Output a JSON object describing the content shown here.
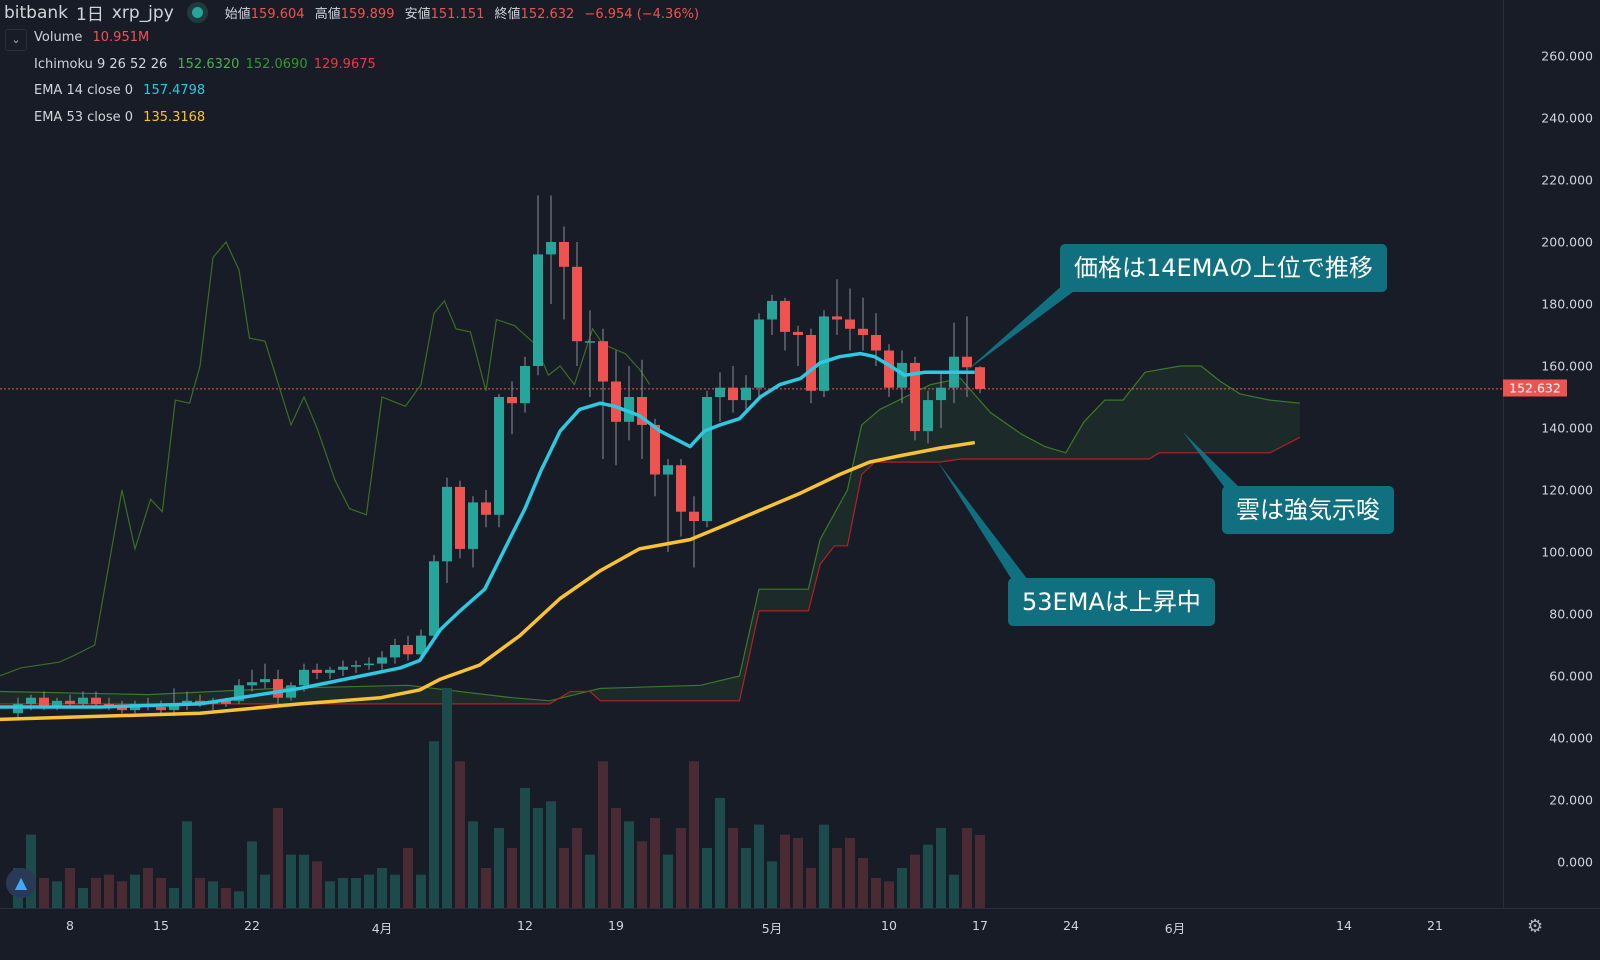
{
  "header": {
    "exchange": "bitbank",
    "interval": "1日",
    "symbol": "xrp_jpy",
    "open_label": "始値",
    "open": "159.604",
    "high_label": "高値",
    "high": "159.899",
    "low_label": "安値",
    "low": "151.151",
    "close_label": "終値",
    "close": "152.632",
    "change": "−6.954 (−4.36%)"
  },
  "legend": {
    "volume_label": "Volume",
    "volume_value": "10.951M",
    "ichimoku_label": "Ichimoku 9 26 52 26",
    "ichimoku_v1": "152.6320",
    "ichimoku_v2": "152.0690",
    "ichimoku_v3": "129.9675",
    "ema14_label": "EMA 14 close 0",
    "ema14_value": "157.4798",
    "ema53_label": "EMA 53 close 0",
    "ema53_value": "135.3168"
  },
  "annotations": {
    "price_note": "価格は14EMAの上位で推移",
    "cloud_note": "雲は強気示唆",
    "ema53_note": "53EMAは上昇中"
  },
  "price_axis": [
    "260.000",
    "240.000",
    "220.000",
    "200.000",
    "180.000",
    "160.000",
    "140.000",
    "120.000",
    "100.000",
    "80.000",
    "60.000",
    "40.000",
    "20.000",
    "0.000"
  ],
  "last_price_tag": "152.632",
  "colors": {
    "background": "#181c27",
    "up": "#26a69a",
    "down": "#ef5350",
    "ema14": "#2ec8e0",
    "ema53": "#f9c235",
    "span_a": "#3a7a25",
    "span_b": "#b22222",
    "lagging": "#3b6e22",
    "callout": "#11707f"
  },
  "icons": {
    "collapse": "chevron-down-icon",
    "settings": "gear-icon",
    "logo": "tradingview-logo-icon",
    "status": "market-open-dot-icon"
  },
  "chart_data": {
    "type": "candlestick",
    "ylim": [
      0,
      270
    ],
    "x_ticks": [
      {
        "label": "8",
        "day": 4
      },
      {
        "label": "15",
        "day": 11
      },
      {
        "label": "22",
        "day": 18
      },
      {
        "label": "4月",
        "day": 28
      },
      {
        "label": "12",
        "day": 39
      },
      {
        "label": "19",
        "day": 46
      },
      {
        "label": "5月",
        "day": 58
      },
      {
        "label": "10",
        "day": 67
      },
      {
        "label": "17",
        "day": 74
      },
      {
        "label": "24",
        "day": 81
      },
      {
        "label": "6月",
        "day": 89
      },
      {
        "label": "14",
        "day": 102
      },
      {
        "label": "21",
        "day": 109
      }
    ],
    "candles_ohlc": [
      [
        48,
        53,
        46,
        51
      ],
      [
        51,
        54,
        49,
        53
      ],
      [
        53,
        55,
        49,
        50
      ],
      [
        50,
        53,
        49,
        52
      ],
      [
        52,
        54,
        50,
        51
      ],
      [
        51,
        55,
        50,
        53
      ],
      [
        53,
        55,
        50,
        51
      ],
      [
        51,
        53,
        49,
        50
      ],
      [
        50,
        52,
        48,
        49
      ],
      [
        49,
        52,
        48,
        51
      ],
      [
        51,
        53,
        49,
        50
      ],
      [
        50,
        52,
        47,
        49
      ],
      [
        49,
        56,
        47,
        51
      ],
      [
        51,
        55,
        49,
        52
      ],
      [
        52,
        54,
        50,
        51
      ],
      [
        51,
        53,
        49,
        52
      ],
      [
        52,
        53,
        50,
        51
      ],
      [
        52,
        59,
        51,
        57
      ],
      [
        57,
        62,
        55,
        58
      ],
      [
        58,
        64,
        56,
        59
      ],
      [
        59,
        62,
        51,
        53
      ],
      [
        53,
        58,
        52,
        57
      ],
      [
        57,
        64,
        55,
        62
      ],
      [
        62,
        64,
        59,
        61
      ],
      [
        61,
        63,
        59,
        62
      ],
      [
        62,
        65,
        60,
        63
      ],
      [
        63,
        65,
        61,
        63.5
      ],
      [
        63.5,
        66,
        62,
        64
      ],
      [
        64,
        68,
        62,
        66
      ],
      [
        66,
        72,
        64,
        70
      ],
      [
        70,
        73,
        65,
        67
      ],
      [
        67,
        75,
        65,
        73
      ],
      [
        73,
        99,
        72,
        97
      ],
      [
        97,
        124,
        90,
        121
      ],
      [
        121,
        123,
        98,
        101
      ],
      [
        101,
        118,
        95,
        116
      ],
      [
        116,
        120,
        108,
        112
      ],
      [
        112,
        151,
        108,
        150
      ],
      [
        150,
        155,
        138,
        148
      ],
      [
        148,
        163,
        145,
        160
      ],
      [
        160,
        215,
        157,
        196
      ],
      [
        196,
        215,
        180,
        200
      ],
      [
        200,
        205,
        175,
        192
      ],
      [
        192,
        200,
        160,
        168
      ],
      [
        168,
        178,
        150,
        168
      ],
      [
        168,
        172,
        130,
        155
      ],
      [
        155,
        165,
        128,
        142
      ],
      [
        142,
        160,
        136,
        150
      ],
      [
        150,
        162,
        130,
        141
      ],
      [
        141,
        143,
        118,
        125
      ],
      [
        125,
        130,
        100,
        128
      ],
      [
        128,
        130,
        105,
        113
      ],
      [
        113,
        118,
        95,
        110
      ],
      [
        110,
        152,
        108,
        150
      ],
      [
        150,
        158,
        142,
        153
      ],
      [
        153,
        160,
        145,
        149
      ],
      [
        149,
        157,
        145,
        153
      ],
      [
        153,
        177,
        150,
        175
      ],
      [
        175,
        183,
        170,
        181
      ],
      [
        181,
        182,
        165,
        171
      ],
      [
        171,
        173,
        160,
        170
      ],
      [
        170,
        172,
        148,
        152
      ],
      [
        152,
        178,
        150,
        176
      ],
      [
        176,
        188,
        170,
        175
      ],
      [
        175,
        185,
        165,
        172
      ],
      [
        172,
        182,
        165,
        170
      ],
      [
        170,
        177,
        160,
        165
      ],
      [
        165,
        167,
        150,
        153
      ],
      [
        153,
        165,
        148,
        161
      ],
      [
        161,
        163,
        136,
        139
      ],
      [
        139,
        152,
        135,
        149
      ],
      [
        149,
        158,
        140,
        153
      ],
      [
        153,
        174,
        148,
        163
      ],
      [
        163,
        176,
        150,
        159.6
      ],
      [
        159.6,
        159.9,
        151.2,
        152.6
      ]
    ],
    "volume_m": [
      6,
      11,
      4.5,
      4,
      6,
      3,
      4.5,
      5,
      4,
      5,
      6,
      4.5,
      3,
      13,
      4.5,
      4,
      3,
      2.5,
      10,
      5,
      15,
      8,
      8,
      7,
      4,
      4.5,
      4.5,
      5,
      6,
      5,
      9,
      5,
      25,
      33,
      22,
      13,
      6,
      12,
      9,
      18,
      15,
      16,
      9,
      12,
      8,
      22,
      15,
      13,
      10,
      13.5,
      8,
      12,
      22,
      9,
      16.5,
      12,
      9,
      12.5,
      7,
      11,
      10.5,
      6,
      12.5,
      9,
      10.5,
      7.5,
      4.5,
      4,
      6,
      8,
      9.5,
      12,
      5,
      12,
      10.951
    ],
    "ema14": [
      [
        -1.4,
        50
      ],
      [
        6.3,
        50
      ],
      [
        14,
        51
      ],
      [
        21.7,
        56
      ],
      [
        29.4,
        62.6
      ],
      [
        30.9,
        65
      ],
      [
        32.5,
        75
      ],
      [
        34,
        81
      ],
      [
        35.9,
        88
      ],
      [
        37.8,
        104
      ],
      [
        39,
        114
      ],
      [
        40.2,
        126
      ],
      [
        41.7,
        139
      ],
      [
        43.2,
        146
      ],
      [
        44.8,
        148
      ],
      [
        45.9,
        147
      ],
      [
        47.8,
        144
      ],
      [
        49.4,
        139
      ],
      [
        51.7,
        134
      ],
      [
        52.8,
        139
      ],
      [
        54,
        141
      ],
      [
        55.5,
        143
      ],
      [
        57.1,
        150
      ],
      [
        58.6,
        154
      ],
      [
        60.2,
        156
      ],
      [
        61.7,
        161
      ],
      [
        63.2,
        163
      ],
      [
        64.8,
        164
      ],
      [
        65.9,
        163
      ],
      [
        67.1,
        160
      ],
      [
        68.2,
        157
      ],
      [
        69.8,
        158
      ],
      [
        71.3,
        158
      ],
      [
        73.6,
        158
      ]
    ],
    "ema53": [
      [
        -1.4,
        46
      ],
      [
        6.3,
        47
      ],
      [
        14,
        48
      ],
      [
        21.7,
        51
      ],
      [
        27.9,
        53
      ],
      [
        30.9,
        55.5
      ],
      [
        32.5,
        59
      ],
      [
        35.5,
        63.5
      ],
      [
        38.6,
        73
      ],
      [
        41.7,
        85
      ],
      [
        44.8,
        94
      ],
      [
        47.8,
        101
      ],
      [
        51.7,
        104
      ],
      [
        54,
        108
      ],
      [
        57.1,
        113.5
      ],
      [
        60.2,
        119
      ],
      [
        63.2,
        125
      ],
      [
        65.5,
        129
      ],
      [
        67.8,
        131
      ],
      [
        70.9,
        133.5
      ],
      [
        73.6,
        135.3
      ]
    ],
    "ichimoku_lagging": [
      [
        -1.4,
        60
      ],
      [
        0.2,
        62.6
      ],
      [
        3.2,
        64.5
      ],
      [
        4.4,
        66.8
      ],
      [
        5.9,
        70
      ],
      [
        8,
        120
      ],
      [
        9,
        101
      ],
      [
        10.2,
        117
      ],
      [
        11.1,
        113
      ],
      [
        12.1,
        149
      ],
      [
        13.2,
        148
      ],
      [
        14,
        160
      ],
      [
        15,
        195
      ],
      [
        16,
        200
      ],
      [
        17,
        191
      ],
      [
        17.8,
        169
      ],
      [
        19,
        168
      ],
      [
        21,
        141
      ],
      [
        22,
        150
      ],
      [
        23,
        140
      ],
      [
        24.4,
        123
      ],
      [
        25.5,
        114
      ],
      [
        26.8,
        112
      ],
      [
        28,
        150
      ],
      [
        29.8,
        147
      ],
      [
        31,
        154
      ],
      [
        32,
        177
      ],
      [
        32.8,
        181
      ],
      [
        33.7,
        172
      ],
      [
        34.8,
        171
      ],
      [
        36,
        152
      ],
      [
        36.8,
        175
      ],
      [
        38.2,
        173
      ],
      [
        39.8,
        167
      ],
      [
        40.8,
        157
      ],
      [
        41.7,
        160
      ],
      [
        42.8,
        154
      ],
      [
        44.2,
        172
      ],
      [
        45,
        167
      ],
      [
        46.7,
        164
      ],
      [
        47.8,
        159
      ],
      [
        48.6,
        154
      ]
    ],
    "ichimoku_span_a": [
      [
        -1.4,
        55
      ],
      [
        10,
        54
      ],
      [
        20,
        56
      ],
      [
        30,
        57
      ],
      [
        38,
        53
      ],
      [
        40.9,
        52
      ],
      [
        44.8,
        56
      ],
      [
        52.5,
        57
      ],
      [
        55.5,
        60
      ],
      [
        57,
        88
      ],
      [
        60.8,
        88
      ],
      [
        61.7,
        104
      ],
      [
        63.8,
        120
      ],
      [
        64.9,
        141
      ],
      [
        66.3,
        146
      ],
      [
        70.2,
        154
      ],
      [
        72.5,
        156
      ],
      [
        74.8,
        145
      ],
      [
        77.2,
        138
      ],
      [
        79,
        134
      ],
      [
        80.6,
        132
      ],
      [
        82,
        142
      ],
      [
        83.6,
        149
      ],
      [
        85,
        149
      ],
      [
        86.7,
        158
      ],
      [
        89.4,
        160
      ],
      [
        91,
        160
      ],
      [
        92.5,
        155
      ],
      [
        94,
        151
      ],
      [
        96.3,
        149
      ],
      [
        98.6,
        148
      ]
    ],
    "ichimoku_span_b": [
      [
        -1.4,
        51
      ],
      [
        40.9,
        51
      ],
      [
        42.5,
        55
      ],
      [
        44,
        55
      ],
      [
        44.8,
        52
      ],
      [
        55.5,
        52
      ],
      [
        57,
        81
      ],
      [
        60.8,
        81
      ],
      [
        61.7,
        96
      ],
      [
        62.8,
        102
      ],
      [
        63.8,
        102
      ],
      [
        64.9,
        125
      ],
      [
        65.9,
        129
      ],
      [
        70.9,
        129
      ],
      [
        72.5,
        130
      ],
      [
        87,
        130
      ],
      [
        87.8,
        132
      ],
      [
        96.3,
        132
      ],
      [
        98.6,
        137
      ]
    ],
    "last_price": 152.632
  }
}
